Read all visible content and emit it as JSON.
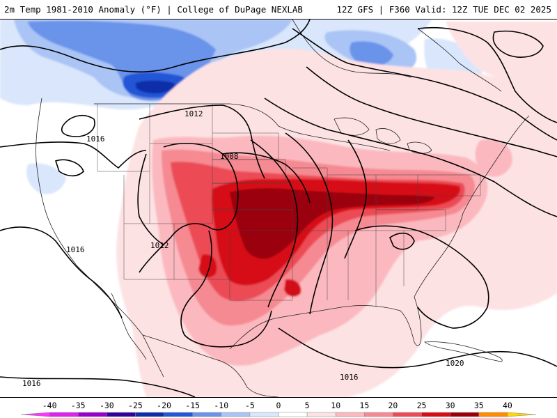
{
  "header": {
    "title_left": "2m Temp 1981-2010 Anomaly (°F) | College of DuPage NEXLAB",
    "title_right": "12Z GFS | F360 Valid: 12Z TUE DEC 02 2025"
  },
  "colors": {
    "background": "#ffffff",
    "contour_line": "#000000",
    "anomaly_scale": [
      {
        "min": -45,
        "max": -40,
        "color": "#ff33ff"
      },
      {
        "min": -40,
        "max": -35,
        "color": "#dd22ee"
      },
      {
        "min": -35,
        "max": -30,
        "color": "#9900cc"
      },
      {
        "min": -30,
        "max": -25,
        "color": "#330099"
      },
      {
        "min": -25,
        "max": -20,
        "color": "#0d2da8"
      },
      {
        "min": -20,
        "max": -15,
        "color": "#2357d6"
      },
      {
        "min": -15,
        "max": -10,
        "color": "#6b93ea"
      },
      {
        "min": -10,
        "max": -5,
        "color": "#a9c4f5"
      },
      {
        "min": -5,
        "max": 0,
        "color": "#d9e6fb"
      },
      {
        "min": 0,
        "max": 5,
        "color": "#ffffff"
      },
      {
        "min": 5,
        "max": 10,
        "color": "#fde2e4"
      },
      {
        "min": 10,
        "max": 15,
        "color": "#fbb9bf"
      },
      {
        "min": 15,
        "max": 20,
        "color": "#f58a92"
      },
      {
        "min": 20,
        "max": 25,
        "color": "#ec4b55"
      },
      {
        "min": 25,
        "max": 30,
        "color": "#d60d14"
      },
      {
        "min": 30,
        "max": 35,
        "color": "#9a0008"
      },
      {
        "min": 35,
        "max": 40,
        "color": "#ff8c00"
      },
      {
        "min": 40,
        "max": 45,
        "color": "#ffd700"
      }
    ]
  },
  "colorbar": {
    "units": "°F",
    "tick_labels": [
      "-40",
      "-35",
      "-30",
      "-25",
      "-20",
      "-15",
      "-10",
      "-5",
      "0",
      "5",
      "10",
      "15",
      "20",
      "25",
      "30",
      "35",
      "40"
    ]
  },
  "isobars": {
    "units": "mb",
    "labels": [
      "1016",
      "1012",
      "1008",
      "1016",
      "1012",
      "1016",
      "1020",
      "1016"
    ]
  }
}
